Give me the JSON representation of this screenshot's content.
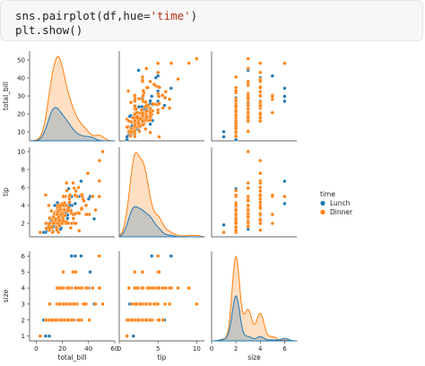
{
  "code_cell": {
    "line1": {
      "prefix": "sns.pairplot(df,hue=",
      "string": "'time'",
      "suffix": ")"
    },
    "line2": "plt.show()"
  },
  "colors": {
    "lunch": "#1f77b4",
    "dinner": "#ff7f0e",
    "code_bg": "#f7f7f7"
  },
  "legend": {
    "title": "time",
    "entries": [
      "Lunch",
      "Dinner"
    ]
  },
  "chart_data": {
    "type": "scatter",
    "subtype": "pairplot",
    "variables": [
      "total_bill",
      "tip",
      "size"
    ],
    "hue": "time",
    "hue_levels": [
      "Lunch",
      "Dinner"
    ],
    "axes": {
      "total_bill": {
        "label": "total_bill",
        "range": [
          -5,
          60
        ],
        "ticks": [
          0,
          20,
          40,
          60
        ],
        "ylim": [
          5,
          55
        ],
        "yticks": [
          10,
          20,
          30,
          40,
          50
        ]
      },
      "tip": {
        "label": "tip",
        "range": [
          0,
          11
        ],
        "ticks": [
          0,
          5,
          10
        ],
        "ylim": [
          0.5,
          10.5
        ],
        "yticks": [
          2,
          4,
          6,
          8,
          10
        ]
      },
      "size": {
        "label": "size",
        "range": [
          0,
          7
        ],
        "ticks": [
          0,
          2,
          4,
          6
        ],
        "ylim": [
          0.7,
          6.3
        ],
        "yticks": [
          1,
          2,
          3,
          4,
          5,
          6
        ]
      }
    },
    "points": {
      "Lunch": [
        [
          27.2,
          4.0,
          4
        ],
        [
          22.76,
          3.0,
          2
        ],
        [
          17.29,
          2.71,
          2
        ],
        [
          19.44,
          3.0,
          2
        ],
        [
          16.66,
          3.4,
          2
        ],
        [
          10.07,
          1.83,
          1
        ],
        [
          32.68,
          5.0,
          2
        ],
        [
          15.98,
          2.03,
          2
        ],
        [
          34.83,
          5.17,
          4
        ],
        [
          13.03,
          2.0,
          2
        ],
        [
          18.28,
          4.0,
          2
        ],
        [
          24.71,
          5.85,
          2
        ],
        [
          21.16,
          3.0,
          2
        ],
        [
          28.97,
          3.0,
          2
        ],
        [
          22.49,
          3.5,
          2
        ],
        [
          5.75,
          1.0,
          2
        ],
        [
          16.32,
          4.3,
          2
        ],
        [
          22.75,
          3.25,
          2
        ],
        [
          40.17,
          4.73,
          4
        ],
        [
          27.28,
          4.0,
          2
        ],
        [
          12.03,
          1.5,
          2
        ],
        [
          21.01,
          3.0,
          2
        ],
        [
          12.46,
          1.5,
          2
        ],
        [
          11.35,
          2.5,
          2
        ],
        [
          15.38,
          3.0,
          2
        ],
        [
          44.3,
          2.5,
          3
        ],
        [
          22.42,
          3.48,
          2
        ],
        [
          20.92,
          4.08,
          2
        ],
        [
          15.36,
          1.64,
          2
        ],
        [
          20.49,
          4.06,
          2
        ],
        [
          25.21,
          4.29,
          2
        ],
        [
          18.24,
          3.76,
          2
        ],
        [
          14.31,
          4.0,
          2
        ],
        [
          14.0,
          3.0,
          2
        ],
        [
          7.25,
          1.0,
          1
        ],
        [
          38.07,
          4.0,
          3
        ],
        [
          23.95,
          2.55,
          2
        ],
        [
          25.71,
          4.0,
          3
        ],
        [
          17.31,
          3.5,
          2
        ],
        [
          29.93,
          5.07,
          4
        ],
        [
          10.65,
          1.5,
          2
        ],
        [
          12.43,
          1.8,
          2
        ],
        [
          24.08,
          2.92,
          4
        ],
        [
          11.69,
          2.31,
          2
        ],
        [
          13.42,
          1.68,
          2
        ],
        [
          14.26,
          2.5,
          2
        ],
        [
          15.95,
          2.0,
          2
        ],
        [
          12.48,
          2.52,
          2
        ],
        [
          29.8,
          4.2,
          6
        ],
        [
          8.52,
          1.48,
          2
        ],
        [
          14.52,
          2.0,
          2
        ],
        [
          11.38,
          2.0,
          2
        ],
        [
          22.82,
          2.18,
          3
        ],
        [
          19.08,
          1.5,
          2
        ],
        [
          20.27,
          2.83,
          2
        ],
        [
          11.17,
          1.5,
          2
        ],
        [
          12.26,
          2.0,
          2
        ],
        [
          18.26,
          3.25,
          2
        ],
        [
          8.51,
          1.25,
          2
        ],
        [
          10.33,
          2.0,
          2
        ],
        [
          14.15,
          2.0,
          2
        ],
        [
          16.0,
          2.0,
          2
        ],
        [
          13.16,
          2.75,
          2
        ],
        [
          17.47,
          3.5,
          2
        ],
        [
          34.3,
          6.7,
          6
        ],
        [
          41.19,
          5.0,
          5
        ],
        [
          27.05,
          5.0,
          6
        ],
        [
          16.43,
          2.3,
          2
        ],
        [
          8.35,
          1.5,
          2
        ],
        [
          18.64,
          1.36,
          3
        ]
      ],
      "Dinner": [
        [
          16.99,
          1.01,
          2
        ],
        [
          10.34,
          1.66,
          3
        ],
        [
          21.01,
          3.5,
          3
        ],
        [
          23.68,
          3.31,
          2
        ],
        [
          24.59,
          3.61,
          4
        ],
        [
          25.29,
          4.71,
          4
        ],
        [
          8.77,
          2.0,
          2
        ],
        [
          26.88,
          3.12,
          4
        ],
        [
          15.04,
          1.96,
          2
        ],
        [
          14.78,
          3.23,
          2
        ],
        [
          10.27,
          1.71,
          2
        ],
        [
          35.26,
          5.0,
          4
        ],
        [
          15.42,
          1.57,
          2
        ],
        [
          18.43,
          3.0,
          4
        ],
        [
          14.83,
          3.02,
          2
        ],
        [
          21.58,
          3.92,
          2
        ],
        [
          10.33,
          1.67,
          3
        ],
        [
          16.29,
          3.71,
          3
        ],
        [
          16.97,
          3.5,
          3
        ],
        [
          20.65,
          3.35,
          3
        ],
        [
          17.92,
          4.08,
          2
        ],
        [
          20.29,
          2.75,
          2
        ],
        [
          15.77,
          2.23,
          2
        ],
        [
          39.42,
          7.58,
          4
        ],
        [
          19.82,
          3.18,
          2
        ],
        [
          17.81,
          2.34,
          4
        ],
        [
          13.37,
          2.0,
          2
        ],
        [
          12.69,
          2.0,
          2
        ],
        [
          21.7,
          4.3,
          2
        ],
        [
          19.65,
          3.0,
          2
        ],
        [
          9.55,
          1.45,
          2
        ],
        [
          18.35,
          2.5,
          4
        ],
        [
          15.06,
          3.0,
          2
        ],
        [
          20.69,
          2.45,
          4
        ],
        [
          17.78,
          3.27,
          2
        ],
        [
          24.06,
          3.6,
          3
        ],
        [
          16.31,
          2.0,
          3
        ],
        [
          16.93,
          3.07,
          3
        ],
        [
          18.69,
          2.31,
          3
        ],
        [
          31.27,
          5.0,
          3
        ],
        [
          16.04,
          2.24,
          3
        ],
        [
          17.46,
          2.54,
          2
        ],
        [
          13.94,
          3.06,
          2
        ],
        [
          9.68,
          1.32,
          2
        ],
        [
          30.4,
          5.6,
          4
        ],
        [
          18.29,
          3.0,
          2
        ],
        [
          22.23,
          5.0,
          2
        ],
        [
          32.4,
          6.0,
          4
        ],
        [
          28.55,
          2.05,
          3
        ],
        [
          18.04,
          3.0,
          2
        ],
        [
          12.54,
          2.5,
          2
        ],
        [
          10.29,
          2.6,
          2
        ],
        [
          34.81,
          5.2,
          4
        ],
        [
          9.94,
          1.56,
          2
        ],
        [
          25.56,
          4.34,
          4
        ],
        [
          19.49,
          3.51,
          2
        ],
        [
          38.01,
          3.0,
          4
        ],
        [
          26.41,
          1.5,
          2
        ],
        [
          11.24,
          1.76,
          2
        ],
        [
          48.27,
          6.73,
          4
        ],
        [
          20.29,
          3.21,
          2
        ],
        [
          13.81,
          2.0,
          2
        ],
        [
          11.02,
          1.98,
          2
        ],
        [
          18.29,
          3.76,
          4
        ],
        [
          17.59,
          2.64,
          3
        ],
        [
          20.08,
          3.15,
          3
        ],
        [
          16.45,
          2.47,
          2
        ],
        [
          3.07,
          1.0,
          1
        ],
        [
          20.23,
          2.01,
          2
        ],
        [
          15.01,
          2.09,
          2
        ],
        [
          12.02,
          1.97,
          2
        ],
        [
          17.07,
          3.0,
          3
        ],
        [
          26.86,
          3.14,
          2
        ],
        [
          25.28,
          5.0,
          2
        ],
        [
          14.73,
          2.2,
          2
        ],
        [
          10.51,
          1.25,
          2
        ],
        [
          50.81,
          10.0,
          3
        ],
        [
          15.81,
          3.16,
          2
        ],
        [
          7.25,
          5.15,
          2
        ],
        [
          31.85,
          3.18,
          2
        ],
        [
          16.82,
          4.0,
          2
        ],
        [
          32.9,
          3.11,
          2
        ],
        [
          17.89,
          2.0,
          2
        ],
        [
          14.48,
          2.0,
          2
        ],
        [
          9.6,
          4.0,
          2
        ],
        [
          34.63,
          3.55,
          2
        ],
        [
          34.65,
          3.68,
          4
        ],
        [
          23.33,
          5.65,
          2
        ],
        [
          45.35,
          3.5,
          3
        ],
        [
          23.17,
          6.5,
          4
        ],
        [
          40.55,
          3.0,
          2
        ],
        [
          20.69,
          5.0,
          5
        ],
        [
          20.9,
          3.5,
          3
        ],
        [
          30.46,
          2.0,
          5
        ],
        [
          18.15,
          3.5,
          3
        ],
        [
          23.1,
          4.0,
          3
        ],
        [
          15.69,
          1.5,
          2
        ],
        [
          19.81,
          4.19,
          2
        ],
        [
          28.44,
          2.56,
          2
        ],
        [
          15.48,
          2.02,
          2
        ],
        [
          16.58,
          4.0,
          2
        ],
        [
          7.56,
          1.44,
          2
        ],
        [
          10.34,
          2.0,
          2
        ],
        [
          43.11,
          5.0,
          4
        ],
        [
          13.0,
          2.0,
          2
        ],
        [
          13.51,
          2.0,
          2
        ],
        [
          18.71,
          4.0,
          3
        ],
        [
          12.74,
          2.01,
          2
        ],
        [
          13.0,
          2.0,
          2
        ],
        [
          16.4,
          2.5,
          2
        ],
        [
          20.53,
          4.0,
          4
        ],
        [
          16.47,
          3.23,
          3
        ],
        [
          26.59,
          3.41,
          3
        ],
        [
          38.73,
          3.0,
          4
        ],
        [
          24.27,
          2.03,
          2
        ],
        [
          12.76,
          2.23,
          2
        ],
        [
          30.06,
          2.0,
          3
        ],
        [
          25.89,
          5.16,
          4
        ],
        [
          48.33,
          9.0,
          4
        ],
        [
          13.27,
          2.5,
          2
        ],
        [
          28.17,
          6.5,
          3
        ],
        [
          12.9,
          1.1,
          2
        ],
        [
          28.15,
          3.0,
          5
        ],
        [
          11.59,
          1.5,
          2
        ],
        [
          7.74,
          1.44,
          2
        ],
        [
          30.14,
          3.09,
          4
        ],
        [
          22.12,
          2.88,
          2
        ],
        [
          24.01,
          2.0,
          4
        ],
        [
          15.69,
          3.0,
          3
        ],
        [
          11.61,
          3.39,
          2
        ],
        [
          10.77,
          1.47,
          2
        ],
        [
          15.53,
          3.0,
          2
        ],
        [
          10.07,
          1.25,
          2
        ],
        [
          12.6,
          1.0,
          2
        ],
        [
          32.83,
          1.17,
          2
        ],
        [
          35.83,
          4.67,
          3
        ],
        [
          29.03,
          5.92,
          3
        ],
        [
          27.18,
          2.0,
          2
        ],
        [
          22.67,
          2.0,
          2
        ],
        [
          17.82,
          1.75,
          2
        ],
        [
          18.78,
          3.0,
          2
        ],
        [
          25.0,
          3.75,
          4
        ],
        [
          13.39,
          2.61,
          2
        ],
        [
          16.21,
          2.0,
          3
        ],
        [
          16.0,
          1.24,
          4
        ],
        [
          24.55,
          2.0,
          4
        ],
        [
          19.77,
          2.0,
          4
        ],
        [
          29.85,
          5.14,
          5
        ],
        [
          48.17,
          5.0,
          6
        ],
        [
          20.45,
          3.0,
          4
        ],
        [
          13.28,
          2.72,
          2
        ],
        [
          22.12,
          2.88,
          2
        ],
        [
          14.26,
          2.0,
          2
        ],
        [
          27.18,
          2.0,
          2
        ],
        [
          9.78,
          1.73,
          2
        ],
        [
          24.52,
          3.48,
          3
        ],
        [
          23.1,
          4.0,
          3
        ],
        [
          38.07,
          4.0,
          3
        ],
        [
          11.87,
          1.63,
          2
        ],
        [
          7.51,
          2.0,
          2
        ],
        [
          14.07,
          2.5,
          2
        ],
        [
          13.13,
          2.0,
          2
        ],
        [
          17.26,
          2.74,
          3
        ],
        [
          24.55,
          2.0,
          4
        ],
        [
          19.77,
          2.0,
          4
        ],
        [
          29.85,
          5.14,
          5
        ],
        [
          20.76,
          2.24,
          2
        ],
        [
          15.98,
          3.0,
          2
        ],
        [
          17.81,
          2.34,
          4
        ],
        [
          18.15,
          3.5,
          3
        ],
        [
          22.82,
          2.18,
          3
        ],
        [
          24.27,
          2.03,
          2
        ],
        [
          36.44,
          4.5,
          3
        ],
        [
          19.0,
          3.0,
          2
        ],
        [
          21.5,
          3.5,
          2
        ],
        [
          15.0,
          2.5,
          2
        ],
        [
          9.9,
          1.5,
          2
        ],
        [
          12.0,
          1.6,
          2
        ]
      ]
    }
  }
}
